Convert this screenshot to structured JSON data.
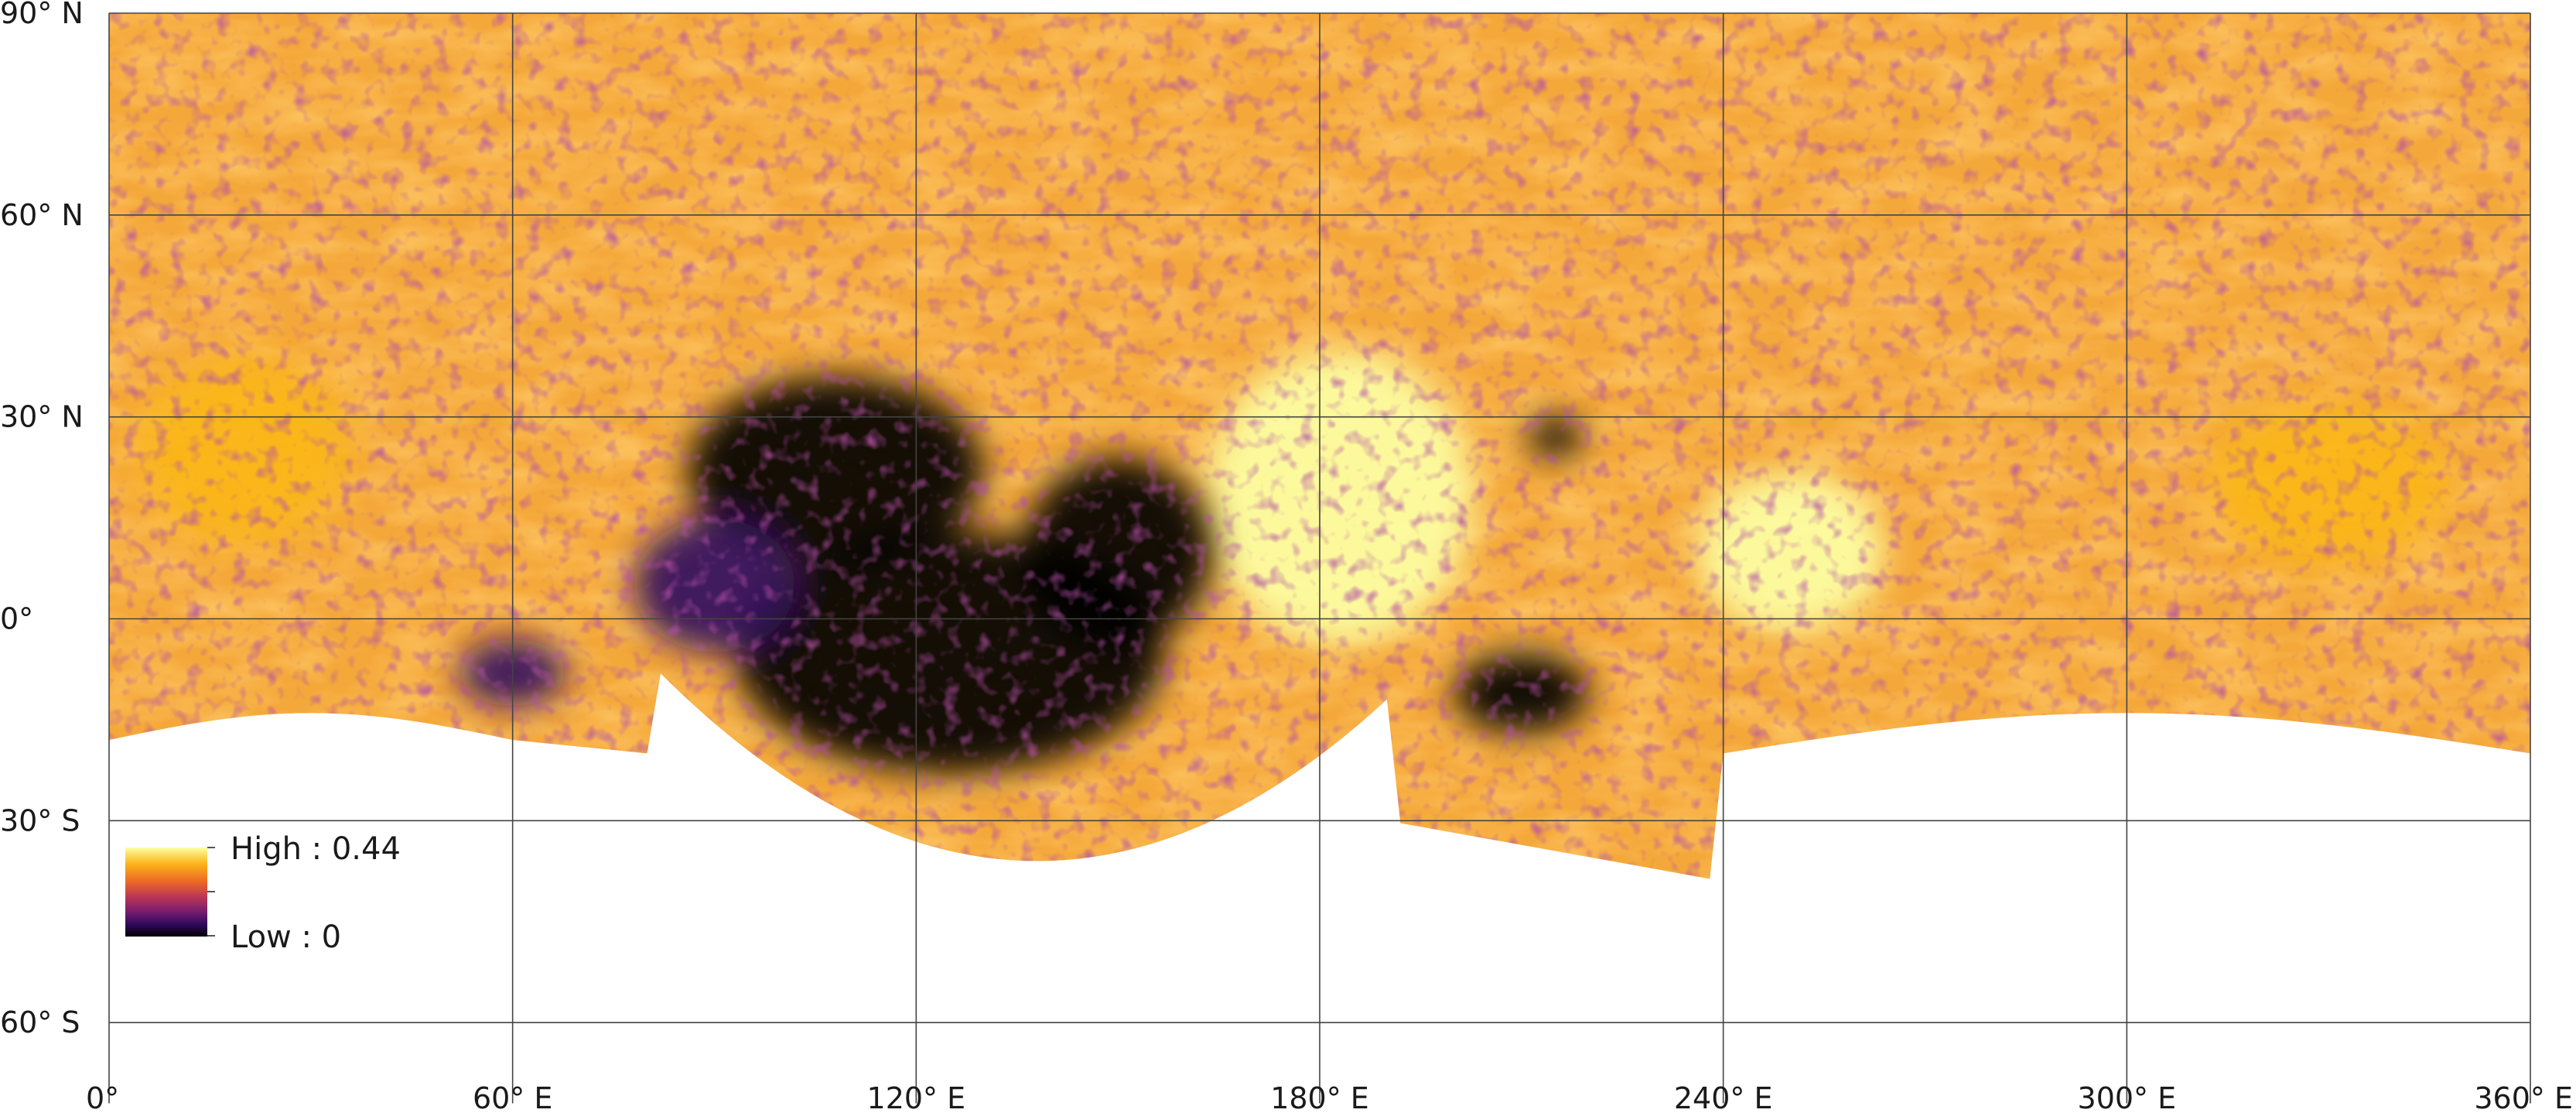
{
  "map": {
    "projection": "equirectangular",
    "lon_range": [
      0,
      360
    ],
    "lat_range": [
      -72,
      90
    ],
    "grid": true,
    "lat_ticks": [
      {
        "lat": 90,
        "label": "90° N"
      },
      {
        "lat": 60,
        "label": "60° N"
      },
      {
        "lat": 30,
        "label": "30° N"
      },
      {
        "lat": 0,
        "label": "0°"
      },
      {
        "lat": -30,
        "label": "30° S"
      },
      {
        "lat": -60,
        "label": "60° S"
      }
    ],
    "lon_ticks": [
      {
        "lon": 0,
        "label": "0°"
      },
      {
        "lon": 60,
        "label": "60° E"
      },
      {
        "lon": 120,
        "label": "120° E"
      },
      {
        "lon": 180,
        "label": "180° E"
      },
      {
        "lon": 240,
        "label": "240° E"
      },
      {
        "lon": 300,
        "label": "300° E"
      },
      {
        "lon": 360,
        "label": "360° E"
      }
    ],
    "colormap": [
      "#000004",
      "#320a5e",
      "#781c6d",
      "#bc3754",
      "#ed6925",
      "#fbb61a",
      "#fcffa4"
    ],
    "dark_regions": [
      {
        "lon": 125,
        "lat": -5,
        "rlon": 32,
        "rlat": 18,
        "level": 0.0
      },
      {
        "lon": 108,
        "lat": 22,
        "rlon": 22,
        "rlat": 14,
        "level": 0.08
      },
      {
        "lon": 150,
        "lat": 10,
        "rlon": 14,
        "rlat": 14,
        "level": 0.05
      },
      {
        "lon": 210,
        "lat": -11,
        "rlon": 10,
        "rlat": 6,
        "level": 0.08
      },
      {
        "lon": 215,
        "lat": 27,
        "rlon": 4,
        "rlat": 3,
        "level": 0.05
      },
      {
        "lon": 90,
        "lat": 5,
        "rlon": 12,
        "rlat": 10,
        "level": 0.12
      },
      {
        "lon": 60,
        "lat": -8,
        "rlon": 8,
        "rlat": 5,
        "level": 0.2
      }
    ],
    "bright_regions": [
      {
        "lon": 183,
        "lat": 18,
        "rlon": 20,
        "rlat": 22,
        "level": 1.0
      },
      {
        "lon": 250,
        "lat": 10,
        "rlon": 14,
        "rlat": 12,
        "level": 0.95
      },
      {
        "lon": 20,
        "lat": 25,
        "rlon": 16,
        "rlat": 14,
        "level": 0.9
      },
      {
        "lon": 330,
        "lat": 20,
        "rlon": 18,
        "rlat": 12,
        "level": 0.85
      }
    ]
  },
  "legend": {
    "high_label": "High : 0.44",
    "low_label": "Low : 0"
  }
}
